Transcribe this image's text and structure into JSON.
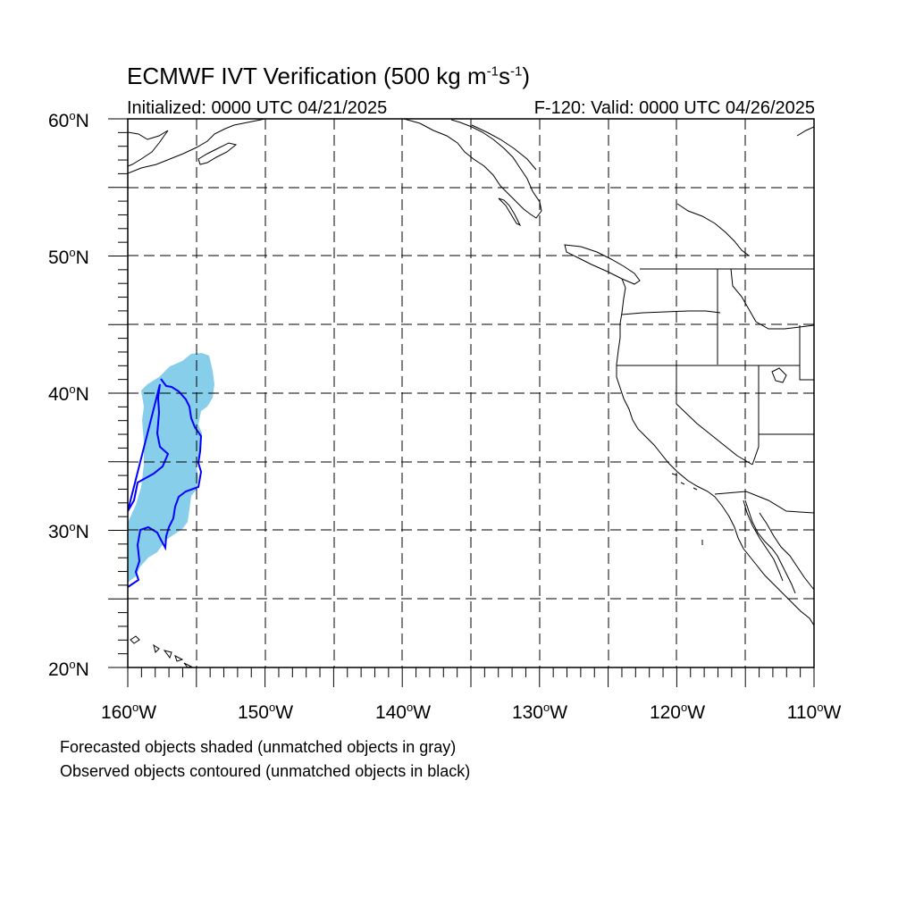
{
  "title": {
    "text": "ECMWF IVT Verification (500 kg m",
    "exp1": "-1",
    "mid": "s",
    "exp2": "-1",
    "end": ")"
  },
  "subtitle_left": "Initialized: 0000 UTC 04/21/2025",
  "subtitle_right": "F-120: Valid: 0000 UTC 04/26/2025",
  "lat_labels": [
    "60",
    "50",
    "40",
    "30",
    "20"
  ],
  "lat_suffix": "N",
  "lon_labels": [
    "160",
    "150",
    "140",
    "130",
    "120",
    "110"
  ],
  "lon_suffix": "W",
  "degree_symbol": "o",
  "captions": [
    "Forecasted objects shaded (unmatched objects in gray)",
    "Observed objects contoured (unmatched objects in black)"
  ],
  "map": {
    "lon_range": [
      -160,
      -110
    ],
    "lat_range": [
      20,
      60
    ],
    "gridlines_deg": 5,
    "forecast_fill_color": "#87CEEB",
    "observed_contour_color": "#0000FF",
    "coastline_color": "#000000"
  }
}
